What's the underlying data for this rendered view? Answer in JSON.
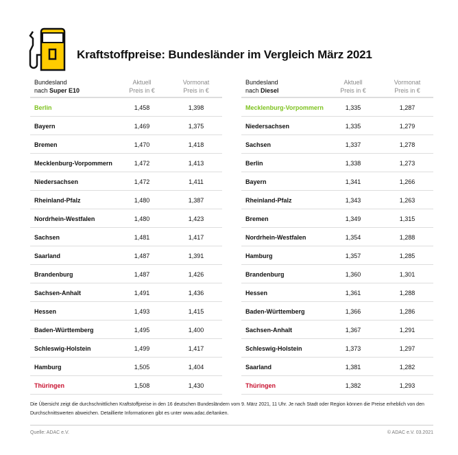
{
  "title": "Kraftstoffpreise: Bundesländer im Vergleich März 2021",
  "colors": {
    "accent_yellow": "#ffcc00",
    "highlight_best": "#7dc21e",
    "highlight_worst": "#c8102e"
  },
  "left": {
    "header": {
      "line1": "Bundesland",
      "line2_prefix": "nach ",
      "line2_bold": "Super E10",
      "col1a": "Aktuell",
      "col1b": "Preis in €",
      "col2a": "Vormonat",
      "col2b": "Preis in €"
    },
    "rows": [
      [
        "Berlin",
        "1,458",
        "1,398"
      ],
      [
        "Bayern",
        "1,469",
        "1,375"
      ],
      [
        "Bremen",
        "1,470",
        "1,418"
      ],
      [
        "Mecklenburg-Vorpommern",
        "1,472",
        "1,413"
      ],
      [
        "Niedersachsen",
        "1,472",
        "1,411"
      ],
      [
        "Rheinland-Pfalz",
        "1,480",
        "1,387"
      ],
      [
        "Nordrhein-Westfalen",
        "1,480",
        "1,423"
      ],
      [
        "Sachsen",
        "1,481",
        "1,417"
      ],
      [
        "Saarland",
        "1,487",
        "1,391"
      ],
      [
        "Brandenburg",
        "1,487",
        "1,426"
      ],
      [
        "Sachsen-Anhalt",
        "1,491",
        "1,436"
      ],
      [
        "Hessen",
        "1,493",
        "1,415"
      ],
      [
        "Baden-Württemberg",
        "1,495",
        "1,400"
      ],
      [
        "Schleswig-Holstein",
        "1,499",
        "1,417"
      ],
      [
        "Hamburg",
        "1,505",
        "1,404"
      ],
      [
        "Thüringen",
        "1,508",
        "1,430"
      ]
    ]
  },
  "right": {
    "header": {
      "line1": "Bundesland",
      "line2_prefix": "nach ",
      "line2_bold": "Diesel",
      "col1a": "Aktuell",
      "col1b": "Preis in €",
      "col2a": "Vormonat",
      "col2b": "Preis in €"
    },
    "rows": [
      [
        "Mecklenburg-Vorpommern",
        "1,335",
        "1,287"
      ],
      [
        "Niedersachsen",
        "1,335",
        "1,279"
      ],
      [
        "Sachsen",
        "1,337",
        "1,278"
      ],
      [
        "Berlin",
        "1,338",
        "1,273"
      ],
      [
        "Bayern",
        "1,341",
        "1,266"
      ],
      [
        "Rheinland-Pfalz",
        "1,343",
        "1,263"
      ],
      [
        "Bremen",
        "1,349",
        "1,315"
      ],
      [
        "Nordrhein-Westfalen",
        "1,354",
        "1,288"
      ],
      [
        "Hamburg",
        "1,357",
        "1,285"
      ],
      [
        "Brandenburg",
        "1,360",
        "1,301"
      ],
      [
        "Hessen",
        "1,361",
        "1,288"
      ],
      [
        "Baden-Württemberg",
        "1,366",
        "1,286"
      ],
      [
        "Sachsen-Anhalt",
        "1,367",
        "1,291"
      ],
      [
        "Schleswig-Holstein",
        "1,373",
        "1,297"
      ],
      [
        "Saarland",
        "1,381",
        "1,282"
      ],
      [
        "Thüringen",
        "1,382",
        "1,293"
      ]
    ]
  },
  "note": "Die Übersicht zeigt die durchschnittlichen Kraftstoffpreise in den 16 deutschen Bundesländern vom 9. März 2021, 11 Uhr. Je nach Stadt oder Region können die Preise erheblich von den Durchschnittswerten abweichen. Detaillierte Informationen gibt es unter www.adac.de/tanken.",
  "source": "Quelle: ADAC e.V.",
  "copyright": "© ADAC e.V. 03.2021"
}
